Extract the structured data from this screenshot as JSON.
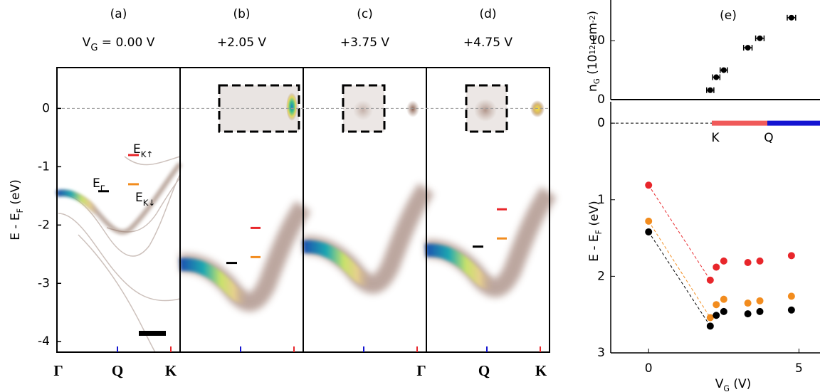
{
  "chart_data": [
    {
      "type": "arpes",
      "ylabel": [
        "E - E",
        "F",
        " (eV)"
      ],
      "ylim": [
        -4.18,
        0.7
      ],
      "yticks": [
        0,
        -1,
        -2,
        -3,
        -4
      ],
      "xlabels": [
        "Γ",
        "Q",
        "K"
      ],
      "panels": [
        {
          "label": "(a)",
          "voltage": [
            "V",
            "G",
            " = 0.00 V"
          ]
        },
        {
          "label": "(b)",
          "voltage": [
            "+2.05 V"
          ]
        },
        {
          "label": "(c)",
          "voltage": [
            "+3.75 V"
          ]
        },
        {
          "label": "(d)",
          "voltage": [
            "+4.75 V"
          ]
        }
      ],
      "series": [
        {
          "name": [
            "E",
            "K↑"
          ],
          "color": "#e8262b",
          "values": [
            -0.8,
            -2.05,
            null,
            -1.73
          ]
        },
        {
          "name": [
            "E",
            "K↓"
          ],
          "color": "#f28c1e",
          "values": [
            -1.3,
            -2.55,
            null,
            -2.23
          ]
        },
        {
          "name": [
            "E",
            "Γ"
          ],
          "color": "#000000",
          "values": [
            -1.42,
            -2.65,
            null,
            -2.37
          ]
        }
      ]
    },
    {
      "type": "scatter",
      "title": "(e)",
      "ylabel": [
        "n",
        "G",
        " (10",
        "12",
        " cm",
        "-2",
        ")"
      ],
      "xlim": [
        -1.26,
        5.7
      ],
      "ylim": [
        0,
        16.9
      ],
      "yticks": [
        0,
        10
      ],
      "x": [
        2.05,
        2.25,
        2.5,
        3.3,
        3.7,
        4.75
      ],
      "values": [
        1.6,
        3.8,
        5,
        8.8,
        10.4,
        13.9
      ],
      "xerror": [
        0.12,
        0.12,
        0.12,
        0.14,
        0.14,
        0.14
      ],
      "color": "#000000"
    },
    {
      "type": "scatter",
      "ylabel": [
        "E - E",
        "F",
        " (eV)"
      ],
      "xlabel": [
        "V",
        "G",
        " (V)"
      ],
      "xlim": [
        -1.26,
        5.7
      ],
      "ylim": [
        3,
        -0.28
      ],
      "yticks": [
        0,
        1,
        2,
        3
      ],
      "xticks": [
        0,
        5
      ],
      "annotations": [
        "K",
        "Q"
      ],
      "x": [
        0,
        2.05,
        2.25,
        2.5,
        3.3,
        3.7,
        4.75
      ],
      "series": [
        {
          "color": "#e8262b",
          "values": [
            0.81,
            2.05,
            1.88,
            1.8,
            1.82,
            1.8,
            1.73
          ]
        },
        {
          "color": "#f28c1e",
          "values": [
            1.28,
            2.54,
            2.37,
            2.3,
            2.35,
            2.32,
            2.26
          ]
        },
        {
          "color": "#000000",
          "values": [
            1.42,
            2.65,
            2.51,
            2.46,
            2.49,
            2.46,
            2.44
          ]
        }
      ]
    }
  ]
}
